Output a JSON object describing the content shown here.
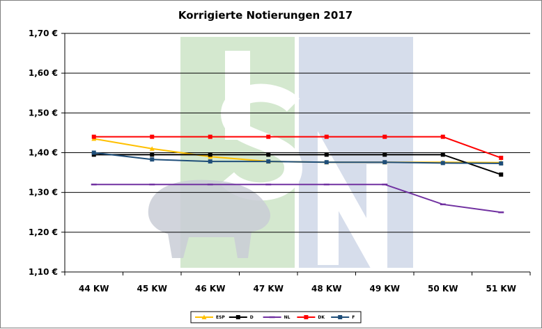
{
  "chart_data": {
    "type": "line",
    "title": "Korrigierte Notierungen 2017",
    "categories": [
      "44 KW",
      "45 KW",
      "46 KW",
      "47 KW",
      "48 KW",
      "49 KW",
      "50 KW",
      "51 KW"
    ],
    "ylim": [
      1.1,
      1.7
    ],
    "yticks": [
      1.1,
      1.2,
      1.3,
      1.4,
      1.5,
      1.6,
      1.7
    ],
    "ytick_labels": [
      "1,10 €",
      "1,20 €",
      "1,30 €",
      "1,40 €",
      "1,50 €",
      "1,60 €",
      "1,70 €"
    ],
    "grid": true,
    "legend_position": "bottom",
    "series": [
      {
        "name": "ESP",
        "color": "#FFC000",
        "marker": "triangle",
        "values": [
          1.435,
          1.41,
          1.39,
          1.378,
          1.376,
          1.376,
          1.376,
          1.375
        ]
      },
      {
        "name": "D",
        "color": "#000000",
        "marker": "square",
        "values": [
          1.395,
          1.395,
          1.395,
          1.395,
          1.395,
          1.395,
          1.395,
          1.345
        ]
      },
      {
        "name": "NL",
        "color": "#7030A0",
        "marker": "dash",
        "values": [
          1.32,
          1.32,
          1.32,
          1.32,
          1.32,
          1.32,
          1.27,
          1.25
        ]
      },
      {
        "name": "DK",
        "color": "#FF0000",
        "marker": "square",
        "values": [
          1.44,
          1.44,
          1.44,
          1.44,
          1.44,
          1.44,
          1.44,
          1.387
        ]
      },
      {
        "name": "F",
        "color": "#1F4E79",
        "marker": "square",
        "values": [
          1.4,
          1.383,
          1.378,
          1.378,
          1.376,
          1.376,
          1.374,
          1.373
        ]
      }
    ]
  },
  "watermark": {
    "letters": [
      "I",
      "S",
      "N"
    ],
    "colors": [
      "#D4E8CF",
      "#D6DDEB"
    ],
    "letter_color": "#FFFFFF"
  }
}
